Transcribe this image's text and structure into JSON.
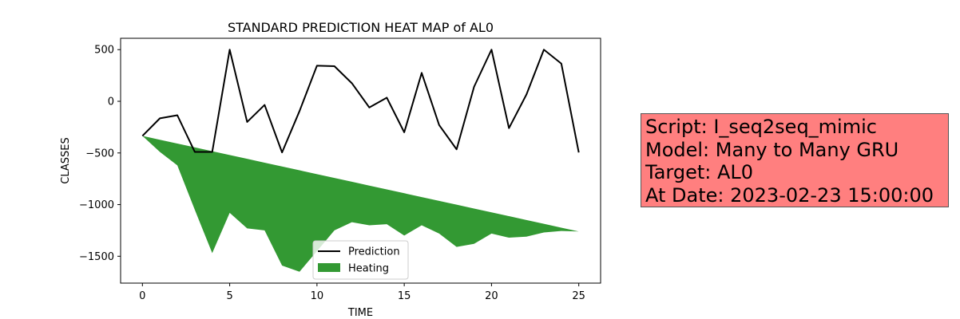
{
  "chart_data": {
    "type": "line",
    "title": "STANDARD PREDICTION HEAT MAP of AL0",
    "xlabel": "TIME",
    "ylabel": "CLASSES",
    "xlim": [
      -1.25,
      26.25
    ],
    "ylim": [
      -1760,
      610
    ],
    "x_ticks": [
      0,
      5,
      10,
      15,
      20,
      25
    ],
    "y_ticks": [
      500,
      0,
      -500,
      -1000,
      -1500
    ],
    "y_tick_labels": [
      "500",
      "0",
      "−500",
      "−1000",
      "−1500"
    ],
    "grid": false,
    "legend_position": "lower center",
    "series": [
      {
        "name": "Prediction",
        "type": "line",
        "color": "#000000",
        "x": [
          0,
          1,
          2,
          3,
          4,
          5,
          6,
          7,
          8,
          9,
          10,
          11,
          12,
          13,
          14,
          15,
          16,
          17,
          18,
          19,
          20,
          21,
          22,
          23,
          24,
          25
        ],
        "y": [
          -335,
          -165,
          -135,
          -490,
          -490,
          500,
          -200,
          -35,
          -495,
          -95,
          345,
          340,
          175,
          -60,
          35,
          -300,
          275,
          -230,
          -465,
          140,
          500,
          -260,
          65,
          500,
          365,
          -495
        ]
      },
      {
        "name": "Heating",
        "type": "area",
        "color": "#007f00",
        "x": [
          0,
          1,
          2,
          3,
          4,
          5,
          6,
          7,
          8,
          9,
          10,
          11,
          12,
          13,
          14,
          15,
          16,
          17,
          18,
          19,
          20,
          21,
          22,
          23,
          24,
          25
        ],
        "upper": [
          -335,
          -372,
          -409,
          -446,
          -483,
          -520,
          -557,
          -594,
          -631,
          -668,
          -705,
          -742,
          -779,
          -816,
          -853,
          -890,
          -927,
          -964,
          -1001,
          -1038,
          -1075,
          -1112,
          -1149,
          -1186,
          -1223,
          -1260
        ],
        "lower": [
          -335,
          -490,
          -620,
          -1050,
          -1470,
          -1080,
          -1230,
          -1250,
          -1590,
          -1650,
          -1450,
          -1250,
          -1170,
          -1200,
          -1190,
          -1300,
          -1200,
          -1280,
          -1410,
          -1380,
          -1280,
          -1320,
          -1310,
          -1270,
          -1255,
          -1260
        ]
      }
    ]
  },
  "info_box": {
    "background": "#ff7f7f",
    "lines": [
      "Script: I_seq2seq_mimic",
      "Model: Many to Many GRU",
      "Target: AL0",
      "At Date: 2023-02-23 15:00:00"
    ]
  }
}
